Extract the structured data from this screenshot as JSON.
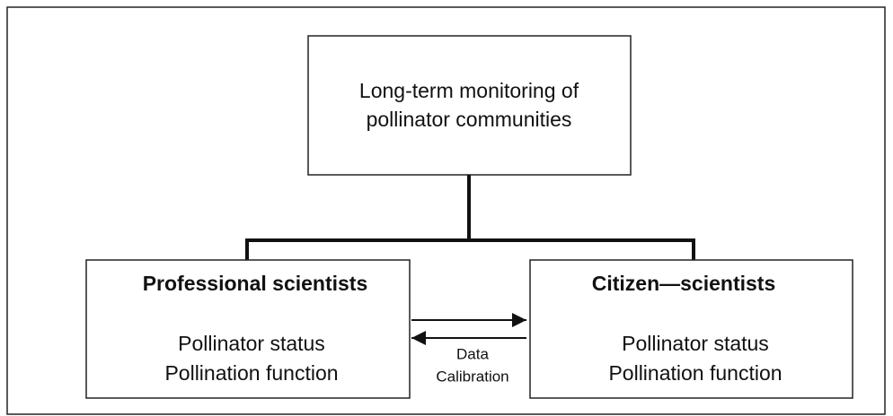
{
  "top_node": {
    "lines": [
      "Long-term monitoring of",
      "pollinator communities"
    ]
  },
  "nodes": [
    {
      "title": "Professional scientists",
      "lines": [
        "Pollinator status",
        "Pollination function"
      ]
    },
    {
      "title": "Citizen—scientists",
      "lines": [
        "Pollinator status",
        "Pollination function"
      ]
    }
  ],
  "arrow_label": {
    "lines": [
      "Data",
      "Calibration"
    ]
  }
}
